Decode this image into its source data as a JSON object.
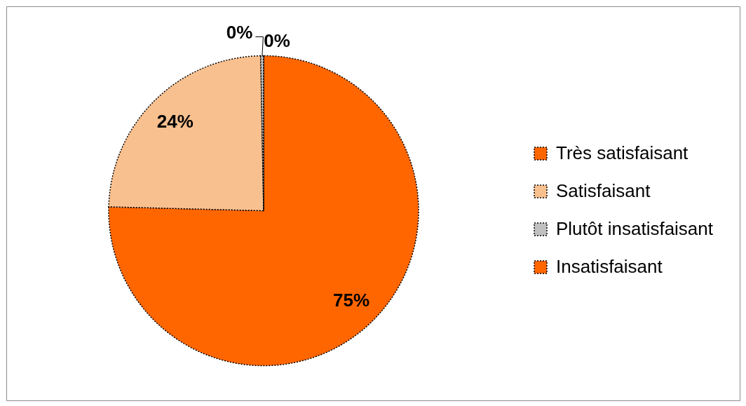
{
  "chart_data": {
    "type": "pie",
    "categories": [
      "Très satisfaisant",
      "Satisfaisant",
      "Plutôt insatisfaisant",
      "Insatisfaisant"
    ],
    "values": [
      75.4,
      24.3,
      0.3,
      0
    ],
    "colors": [
      "#ff6600",
      "#f9c08f",
      "#c0c0c0",
      "#ff6600"
    ],
    "value_labels": [
      "75%",
      "24%",
      "0%",
      "0%"
    ],
    "legend": "right"
  }
}
